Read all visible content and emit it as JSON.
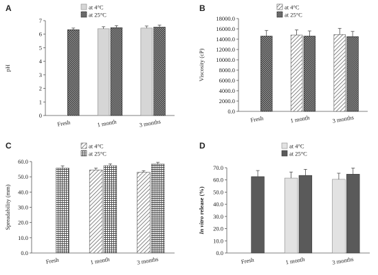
{
  "legend_colors": {
    "at_4C": "#d9d9d9",
    "at_25C": "#555555"
  },
  "chart_data": [
    {
      "panel": "A",
      "type": "bar",
      "categories": [
        "Fresh",
        "1 month",
        "3 months"
      ],
      "ylabel": "pH",
      "ylim": [
        0,
        7
      ],
      "yticks": [
        "0",
        "1",
        "2",
        "3",
        "4",
        "5",
        "6",
        "7"
      ],
      "tick_values": [
        0,
        1,
        2,
        3,
        4,
        5,
        6,
        7
      ],
      "legend": [
        "at 4°C",
        "at 25°C"
      ],
      "legend_placement": "top-center",
      "series": [
        {
          "name": "at 4°C",
          "pattern": "plain-gray",
          "values": [
            null,
            6.4,
            6.45
          ],
          "errors": [
            null,
            0.15,
            0.15
          ]
        },
        {
          "name": "at 25°C",
          "pattern": "dark-check",
          "values": [
            6.33,
            6.48,
            6.52
          ],
          "errors": [
            0.12,
            0.15,
            0.15
          ]
        }
      ]
    },
    {
      "panel": "B",
      "type": "bar",
      "categories": [
        "Fresh",
        "1 month",
        "3 months"
      ],
      "ylabel": "Viscosity (cP)",
      "ylim": [
        0,
        18000
      ],
      "yticks": [
        "0.0",
        "2000.0",
        "4000.0",
        "6000.0",
        "8000.0",
        "10000.0",
        "12000.0",
        "14000.0",
        "16000.0",
        "18000.0"
      ],
      "tick_values": [
        0,
        2000,
        4000,
        6000,
        8000,
        10000,
        12000,
        14000,
        16000,
        18000
      ],
      "legend": [
        "at 4°C",
        "at 25°C"
      ],
      "legend_placement": "top-center",
      "series": [
        {
          "name": "at 4°C",
          "pattern": "diagonal-light",
          "values": [
            null,
            14800,
            14900
          ],
          "errors": [
            null,
            1000,
            1200
          ]
        },
        {
          "name": "at 25°C",
          "pattern": "dark-check",
          "values": [
            14600,
            14600,
            14500
          ],
          "errors": [
            1100,
            1000,
            1000
          ]
        }
      ]
    },
    {
      "panel": "C",
      "type": "bar",
      "categories": [
        "Fresh",
        "1 month",
        "3 months"
      ],
      "ylabel": "Spreadability (mm)",
      "ylim": [
        0,
        60
      ],
      "yticks": [
        "0.0",
        "10.0",
        "20.0",
        "30.0",
        "40.0",
        "50.0",
        "60.0"
      ],
      "tick_values": [
        0,
        10,
        20,
        30,
        40,
        50,
        60
      ],
      "legend": [
        "at 4°C",
        "at 25°C"
      ],
      "legend_placement": "top-center",
      "series": [
        {
          "name": "at 4°C",
          "pattern": "diagonal-light",
          "values": [
            null,
            54.5,
            53
          ],
          "errors": [
            null,
            1.2,
            1
          ]
        },
        {
          "name": "at 25°C",
          "pattern": "grid-light",
          "values": [
            55.7,
            57.3,
            58.3
          ],
          "errors": [
            1.5,
            1.2,
            1.2
          ]
        }
      ]
    },
    {
      "panel": "D",
      "type": "bar",
      "categories": [
        "Fresh",
        "1 month",
        "3 months"
      ],
      "ylabel_italic": "In vitro",
      "ylabel_rest": " release (%)",
      "ylim": [
        0,
        70
      ],
      "yticks": [
        "0.0",
        "10.0",
        "20.0",
        "30.0",
        "40.0",
        "50.0",
        "60.0",
        "70.0"
      ],
      "tick_values": [
        0,
        10,
        20,
        30,
        40,
        50,
        60,
        70
      ],
      "legend": [
        "at 4°C",
        "at 25°C"
      ],
      "legend_placement": "top-center",
      "series": [
        {
          "name": "at 4°C",
          "pattern": "plain-light",
          "values": [
            null,
            61.5,
            60.5
          ],
          "errors": [
            null,
            5,
            5
          ]
        },
        {
          "name": "at 25°C",
          "pattern": "solid-dark",
          "values": [
            62.7,
            63.7,
            64.7
          ],
          "errors": [
            5,
            5,
            5
          ]
        }
      ]
    }
  ]
}
